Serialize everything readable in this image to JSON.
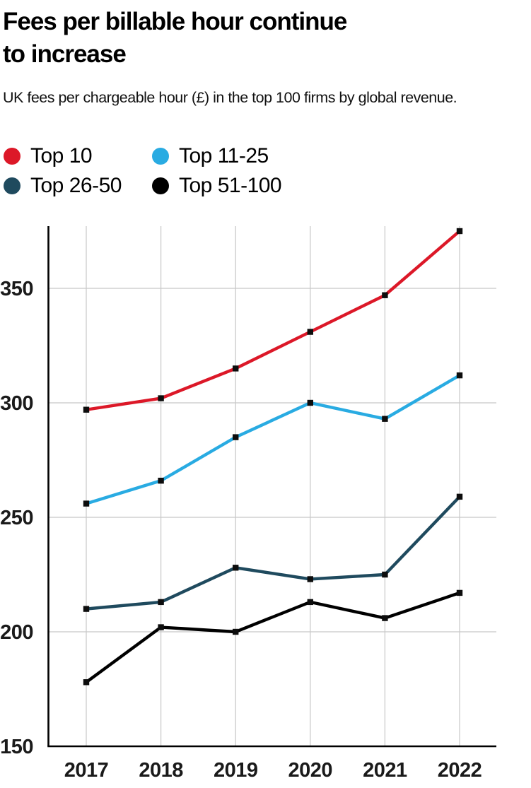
{
  "header": {
    "title_line1": "Fees per billable hour continue",
    "title_line2": "to increase",
    "subtitle": "UK fees per chargeable hour (£) in the top 100 firms by global revenue."
  },
  "legend": {
    "items": [
      {
        "label": "Top 10",
        "color": "#dc1828"
      },
      {
        "label": "Top 11-25",
        "color": "#29abe2"
      },
      {
        "label": "Top 26-50",
        "color": "#1f4a5e"
      },
      {
        "label": "Top 51-100",
        "color": "#000000"
      }
    ]
  },
  "chart_data": {
    "type": "line",
    "title": "Fees per billable hour continue to increase",
    "subtitle": "UK fees per chargeable hour (£) in the top 100 firms by global revenue.",
    "x": [
      "2017",
      "2018",
      "2019",
      "2020",
      "2021",
      "2022"
    ],
    "series": [
      {
        "name": "Top 10",
        "color": "#dc1828",
        "values": [
          297,
          302,
          315,
          331,
          347,
          375
        ]
      },
      {
        "name": "Top 11-25",
        "color": "#29abe2",
        "values": [
          256,
          266,
          285,
          300,
          293,
          312
        ]
      },
      {
        "name": "Top 26-50",
        "color": "#1f4a5e",
        "values": [
          210,
          213,
          228,
          223,
          225,
          259
        ]
      },
      {
        "name": "Top 51-100",
        "color": "#000000",
        "values": [
          178,
          202,
          200,
          213,
          206,
          217
        ]
      }
    ],
    "xlabel": "",
    "ylabel": "",
    "ylim": [
      150,
      377
    ],
    "yticks": [
      150,
      200,
      250,
      300,
      350
    ],
    "grid": true,
    "marker": "square",
    "marker_color": "#0d0d0d",
    "legend_position": "top-left"
  }
}
